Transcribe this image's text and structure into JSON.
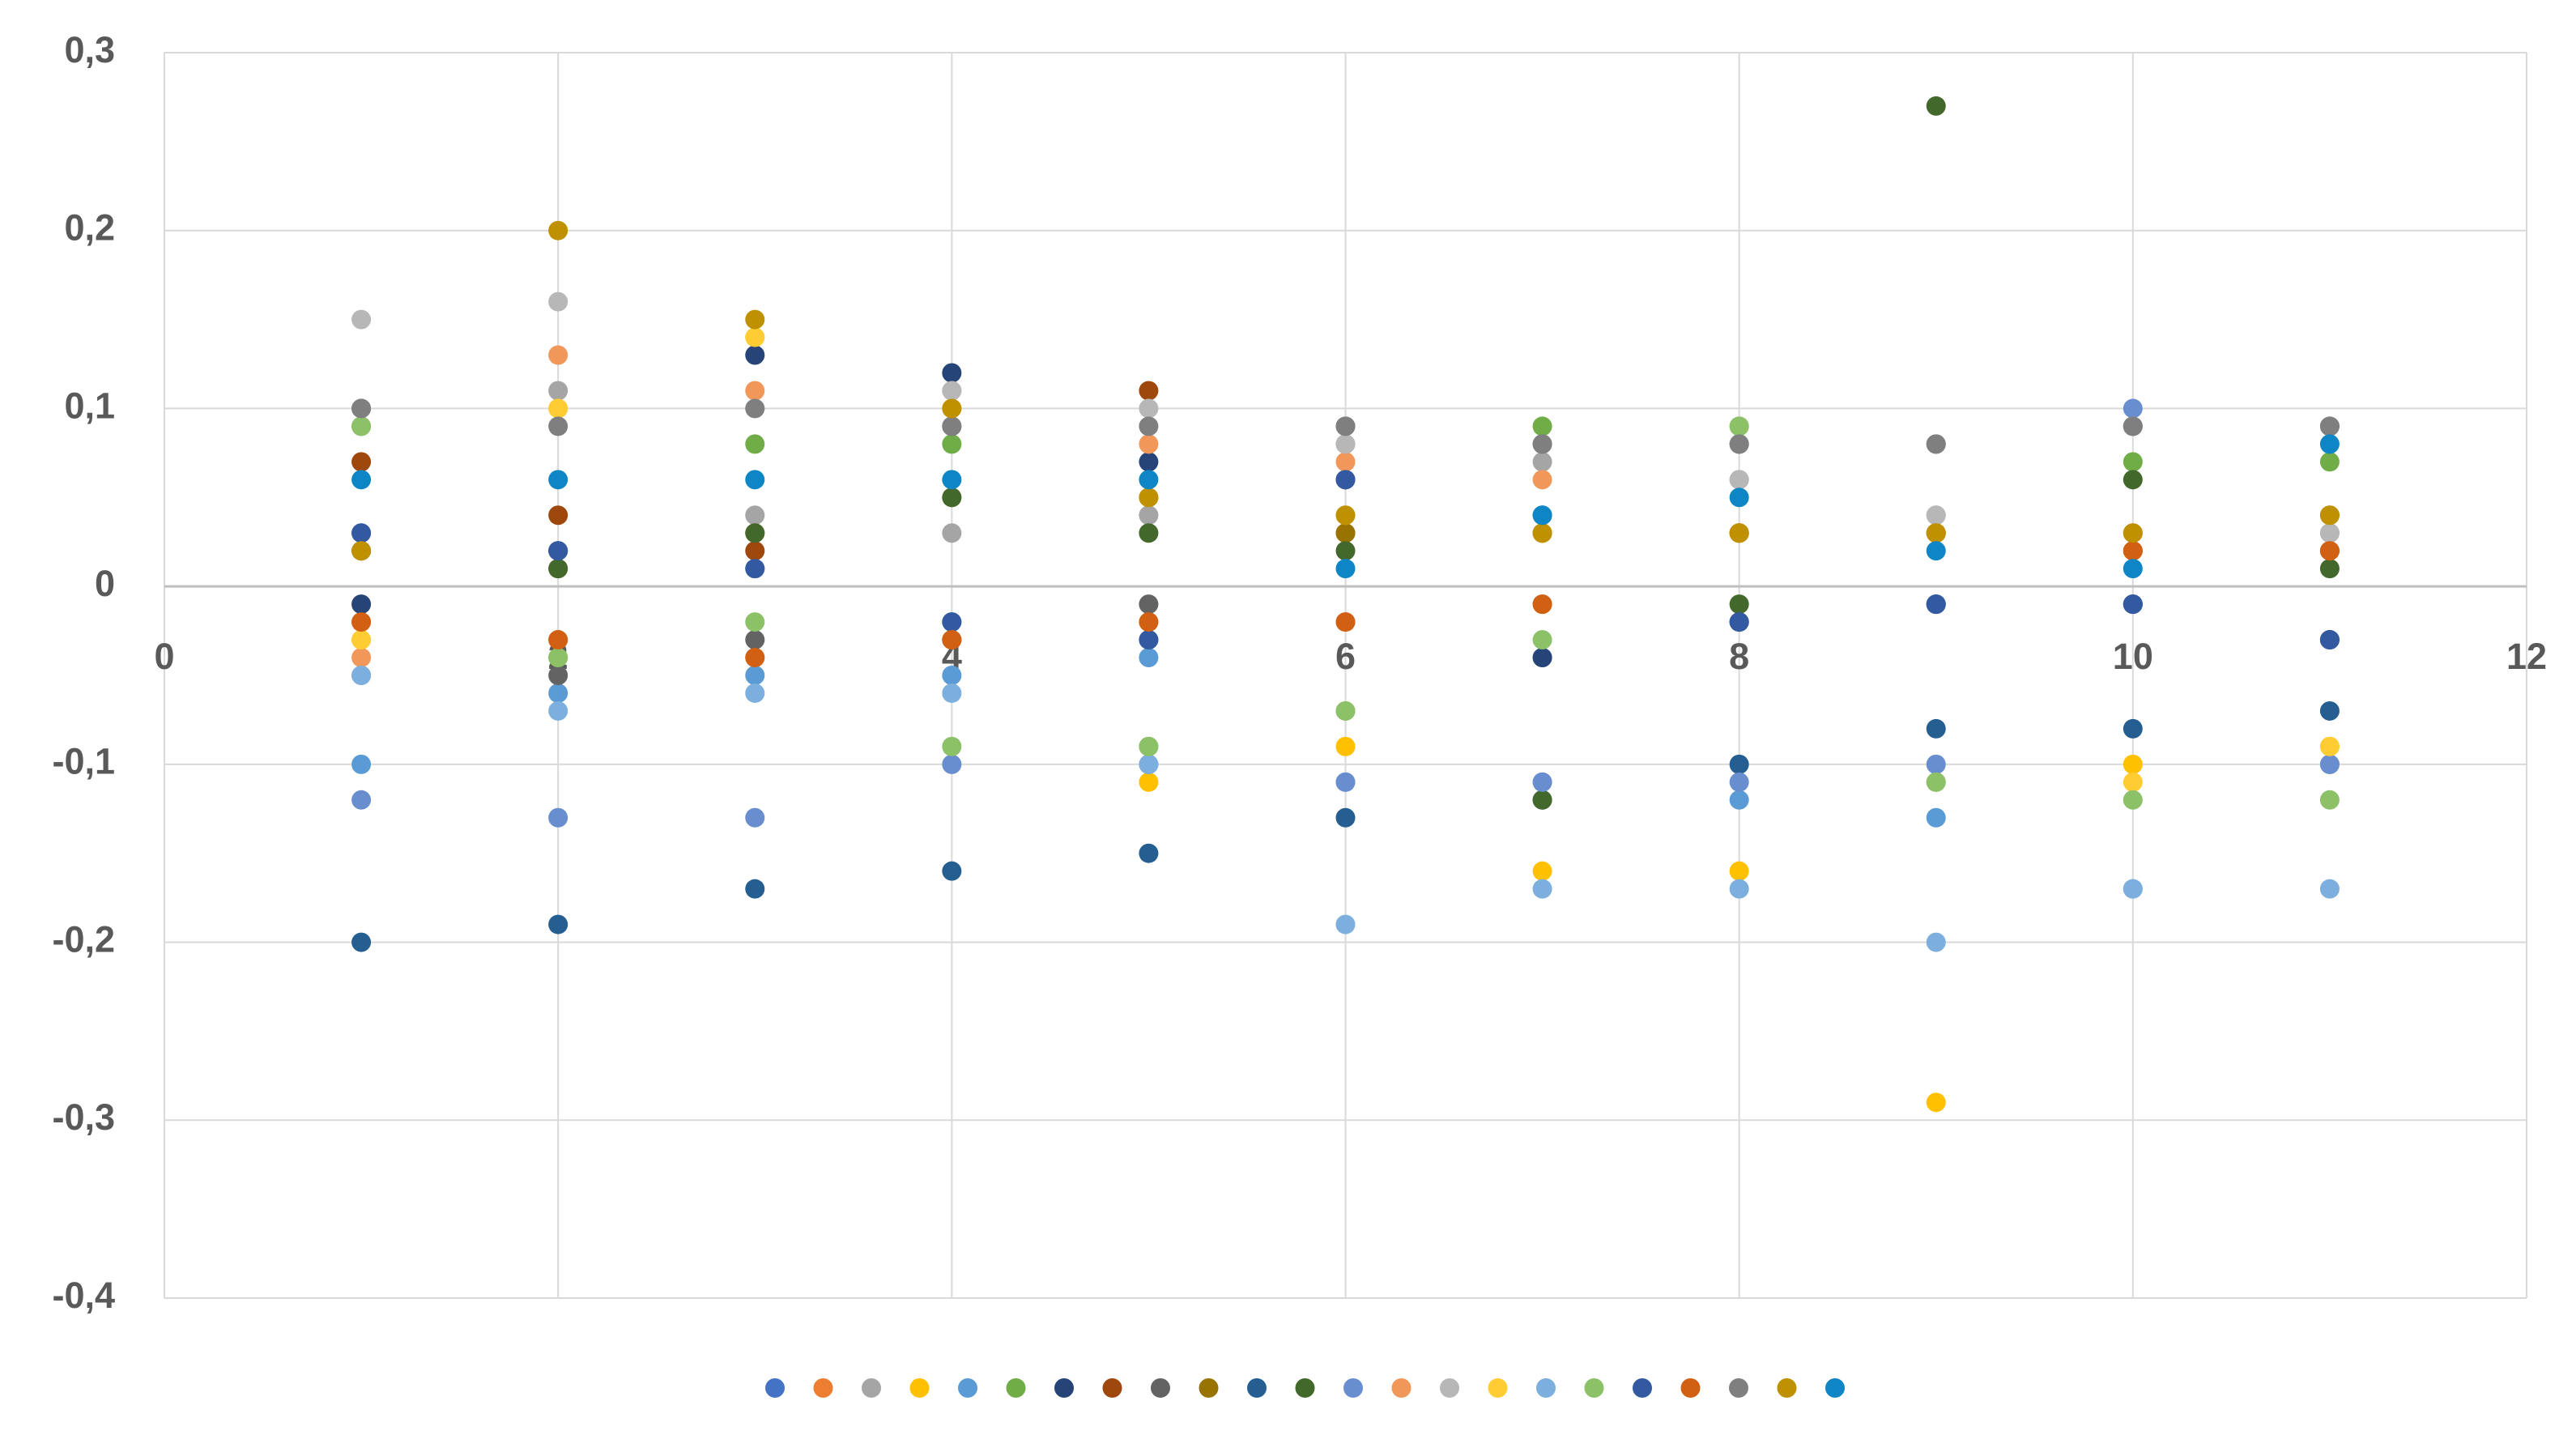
{
  "chart_data": {
    "type": "scatter",
    "x": [
      1,
      2,
      3,
      4,
      5,
      6,
      7,
      8,
      9,
      10,
      11
    ],
    "series": [
      {
        "color": "#4472C4",
        "values": [
          0.03,
          0.02,
          0.01,
          -0.02,
          -0.03,
          0.06,
          -0.04,
          -0.02,
          -0.01,
          -0.01,
          -0.03
        ]
      },
      {
        "color": "#ED7D31",
        "values": [
          -0.02,
          -0.03,
          -0.04,
          -0.03,
          -0.02,
          -0.02,
          -0.01,
          0.03,
          0.03,
          0.02,
          0.02
        ]
      },
      {
        "color": "#A5A5A5",
        "values": [
          -0.05,
          0.11,
          0.04,
          0.03,
          0.04,
          0.08,
          0.07,
          0.06,
          0.04,
          0.09,
          0.03
        ]
      },
      {
        "color": "#FFC000",
        "values": [
          -0.03,
          0.1,
          0.14,
          0.1,
          -0.11,
          -0.09,
          -0.16,
          -0.16,
          -0.29,
          -0.1,
          -0.09
        ]
      },
      {
        "color": "#5B9BD5",
        "values": [
          -0.1,
          -0.06,
          -0.05,
          -0.05,
          -0.04,
          -0.11,
          -0.11,
          -0.12,
          -0.13,
          -0.17,
          -0.1
        ]
      },
      {
        "color": "#70AD47",
        "values": [
          0.09,
          -0.04,
          0.08,
          0.08,
          -0.09,
          -0.07,
          0.09,
          0.09,
          -0.11,
          0.07,
          0.07
        ]
      },
      {
        "color": "#264478",
        "values": [
          -0.01,
          0.02,
          0.13,
          0.12,
          0.07,
          0.06,
          -0.04,
          -0.02,
          -0.01,
          -0.01,
          -0.03
        ]
      },
      {
        "color": "#9E480E",
        "values": [
          0.07,
          0.04,
          0.02,
          -0.03,
          0.11,
          0.03,
          0.03,
          0.03,
          0.03,
          0.02,
          0.02
        ]
      },
      {
        "color": "#636363",
        "values": [
          0.1,
          -0.05,
          -0.03,
          0.09,
          -0.01,
          0.09,
          0.08,
          0.08,
          0.08,
          0.09,
          0.09
        ]
      },
      {
        "color": "#997300",
        "values": [
          0.02,
          0.01,
          0.03,
          0.05,
          0.05,
          0.03,
          0.03,
          0.03,
          0.03,
          0.03,
          0.04
        ]
      },
      {
        "color": "#255E91",
        "values": [
          -0.2,
          -0.19,
          -0.17,
          -0.16,
          -0.15,
          -0.13,
          -0.12,
          -0.1,
          -0.08,
          -0.08,
          -0.07
        ]
      },
      {
        "color": "#43682B",
        "values": [
          0.02,
          0.01,
          0.03,
          0.05,
          0.03,
          0.02,
          -0.12,
          -0.01,
          0.27,
          0.06,
          0.01
        ]
      },
      {
        "color": "#698ED0",
        "values": [
          -0.12,
          -0.13,
          -0.13,
          -0.1,
          -0.1,
          -0.11,
          -0.11,
          -0.11,
          -0.1,
          0.1,
          -0.1
        ]
      },
      {
        "color": "#F1975A",
        "values": [
          -0.04,
          0.13,
          0.11,
          0.11,
          0.08,
          0.07,
          0.06,
          0.03,
          0.03,
          0.03,
          0.02
        ]
      },
      {
        "color": "#B7B7B7",
        "values": [
          0.15,
          0.16,
          0.1,
          0.11,
          0.1,
          0.08,
          0.08,
          0.06,
          0.04,
          0.09,
          0.03
        ]
      },
      {
        "color": "#FFCD33",
        "values": [
          -0.03,
          0.1,
          0.14,
          0.1,
          0.05,
          0.04,
          0.03,
          0.03,
          0.03,
          -0.11,
          -0.09
        ]
      },
      {
        "color": "#7CAFDD",
        "values": [
          -0.05,
          -0.07,
          -0.06,
          -0.06,
          -0.1,
          -0.19,
          -0.17,
          -0.17,
          -0.2,
          -0.17,
          -0.17
        ]
      },
      {
        "color": "#8CC168",
        "values": [
          0.09,
          -0.04,
          -0.02,
          -0.09,
          -0.09,
          -0.07,
          -0.03,
          0.09,
          -0.11,
          -0.12,
          -0.12
        ]
      },
      {
        "color": "#335AA1",
        "values": [
          0.03,
          0.02,
          0.01,
          -0.02,
          -0.03,
          0.06,
          0.04,
          -0.02,
          -0.01,
          -0.01,
          -0.03
        ]
      },
      {
        "color": "#D26012",
        "values": [
          -0.02,
          -0.03,
          -0.04,
          -0.03,
          -0.02,
          -0.02,
          -0.01,
          0.03,
          0.03,
          0.02,
          0.02
        ]
      },
      {
        "color": "#7F7F7F",
        "values": [
          0.1,
          0.09,
          0.1,
          0.09,
          0.09,
          0.09,
          0.08,
          0.08,
          0.08,
          0.09,
          0.09
        ]
      },
      {
        "color": "#BF9000",
        "values": [
          0.02,
          0.2,
          0.15,
          0.1,
          0.05,
          0.04,
          0.03,
          0.03,
          0.03,
          0.03,
          0.04
        ]
      },
      {
        "color": "#0E86C6",
        "values": [
          0.06,
          0.06,
          0.06,
          0.06,
          0.06,
          0.01,
          0.04,
          0.05,
          0.02,
          0.01,
          0.08
        ]
      }
    ],
    "xlim": [
      0,
      12
    ],
    "xticks": [
      0,
      2,
      4,
      6,
      8,
      10,
      12
    ],
    "ylim": [
      -0.4,
      0.3
    ],
    "yticks": [
      {
        "value": -0.4,
        "label": "-0,4"
      },
      {
        "value": -0.3,
        "label": "-0,3"
      },
      {
        "value": -0.2,
        "label": "-0,2"
      },
      {
        "value": -0.1,
        "label": "-0,1"
      },
      0,
      {
        "value": 0.1,
        "label": "0,1"
      },
      {
        "value": 0.2,
        "label": "0,2"
      },
      {
        "value": 0.3,
        "label": "0,3"
      }
    ],
    "grid": true,
    "legend": "bottom"
  }
}
